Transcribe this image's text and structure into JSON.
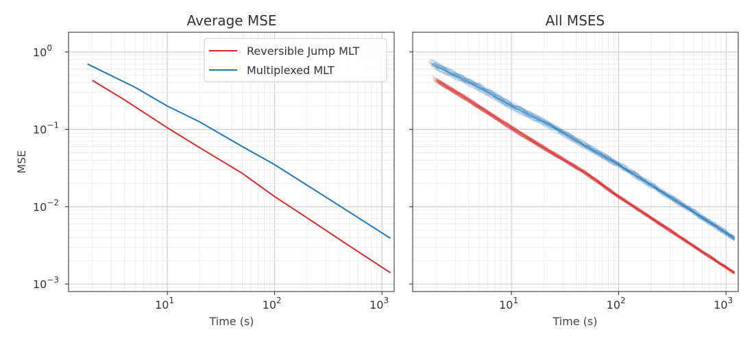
{
  "chart_data": [
    {
      "type": "line",
      "title": "Average MSE",
      "xlabel": "Time (s)",
      "ylabel": "MSE",
      "xscale": "log",
      "yscale": "log",
      "xlim": [
        1.2,
        1300
      ],
      "ylim": [
        0.0008,
        1.8
      ],
      "xticks": [
        {
          "base": "10",
          "exp": "1",
          "value": 10
        },
        {
          "base": "10",
          "exp": "2",
          "value": 100
        },
        {
          "base": "10",
          "exp": "3",
          "value": 1000
        }
      ],
      "yticks": [
        {
          "base": "10",
          "exp": "0",
          "value": 1
        },
        {
          "base": "10",
          "exp": "−1",
          "value": 0.1
        },
        {
          "base": "10",
          "exp": "−2",
          "value": 0.01
        },
        {
          "base": "10",
          "exp": "−3",
          "value": 0.001
        }
      ],
      "grid": true,
      "legend": "top-right",
      "series": [
        {
          "name": "Reversible Jump MLT",
          "color": "#d62728",
          "x": [
            2,
            4,
            10,
            20,
            50,
            100,
            200,
            500,
            1200
          ],
          "y": [
            0.43,
            0.24,
            0.105,
            0.058,
            0.027,
            0.0135,
            0.0072,
            0.0031,
            0.0014
          ]
        },
        {
          "name": "Multiplexed MLT",
          "color": "#1f77b4",
          "x": [
            1.8,
            5,
            10,
            20,
            50,
            100,
            200,
            500,
            1200
          ],
          "y": [
            0.7,
            0.35,
            0.2,
            0.125,
            0.06,
            0.035,
            0.019,
            0.0085,
            0.0039
          ]
        }
      ]
    },
    {
      "type": "line",
      "title": "All MSES",
      "xlabel": "Time (s)",
      "ylabel": "",
      "xscale": "log",
      "yscale": "log",
      "xlim": [
        1.2,
        1300
      ],
      "ylim": [
        0.0008,
        1.8
      ],
      "xticks": [
        {
          "base": "10",
          "exp": "1",
          "value": 10
        },
        {
          "base": "10",
          "exp": "2",
          "value": 100
        },
        {
          "base": "10",
          "exp": "3",
          "value": 1000
        }
      ],
      "yticks": [],
      "grid": true,
      "series": [
        {
          "color": "#d62728",
          "x": [
            2,
            4,
            10,
            20,
            50,
            100,
            200,
            500,
            1200
          ],
          "y": [
            0.43,
            0.24,
            0.105,
            0.058,
            0.027,
            0.0135,
            0.0072,
            0.0031,
            0.0014
          ]
        },
        {
          "color": "#1f77b4",
          "x": [
            1.8,
            5,
            10,
            20,
            50,
            100,
            200,
            500,
            1200
          ],
          "y": [
            0.7,
            0.35,
            0.2,
            0.125,
            0.06,
            0.035,
            0.019,
            0.0085,
            0.0039
          ]
        }
      ]
    }
  ]
}
